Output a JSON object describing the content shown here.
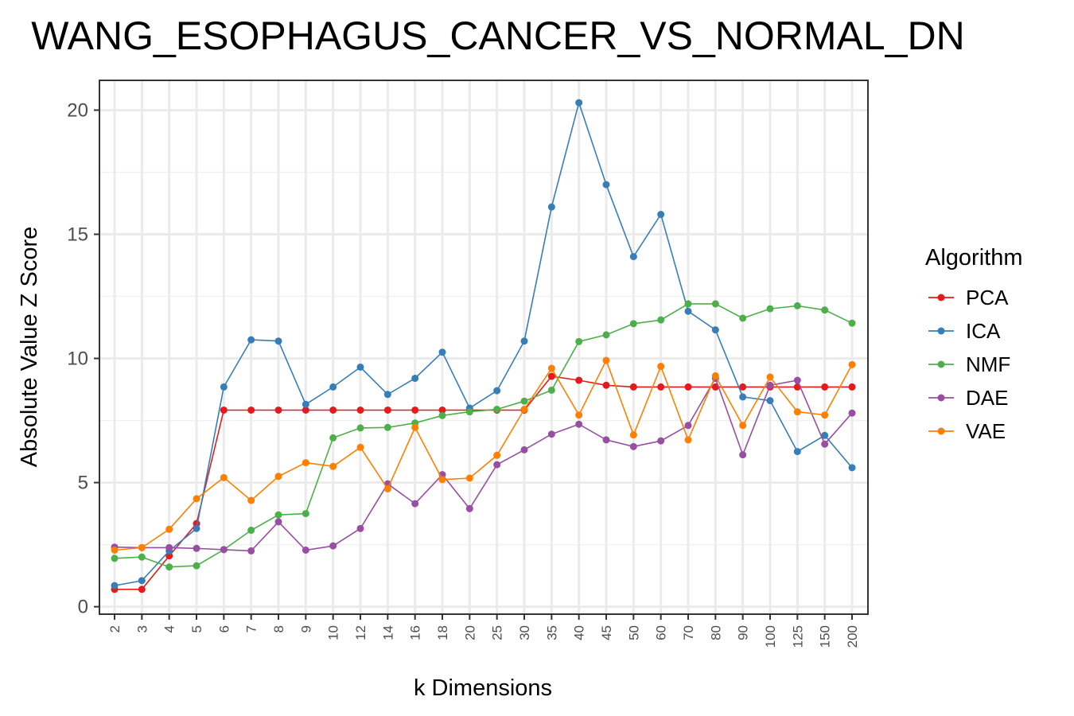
{
  "chart_data": {
    "type": "line",
    "title": "WANG_ESOPHAGUS_CANCER_VS_NORMAL_DN",
    "xlabel": "k Dimensions",
    "ylabel": "Absolute Value Z Score",
    "categories": [
      "2",
      "3",
      "4",
      "5",
      "6",
      "7",
      "8",
      "9",
      "10",
      "12",
      "14",
      "16",
      "18",
      "20",
      "25",
      "30",
      "35",
      "40",
      "45",
      "50",
      "60",
      "70",
      "80",
      "90",
      "100",
      "125",
      "150",
      "200"
    ],
    "ylim": [
      -0.3,
      21.2
    ],
    "yticks": [
      "0",
      "5",
      "10",
      "15",
      "20"
    ],
    "grid": true,
    "legend": {
      "title": "Algorithm",
      "placement": "right"
    },
    "series": [
      {
        "name": "PCA",
        "color": "#e41a1c",
        "values": [
          0.7,
          0.7,
          2.05,
          3.35,
          7.92,
          7.92,
          7.92,
          7.92,
          7.92,
          7.92,
          7.92,
          7.92,
          7.92,
          7.92,
          7.92,
          7.92,
          9.28,
          9.12,
          8.92,
          8.85,
          8.85,
          8.85,
          8.85,
          8.85,
          8.85,
          8.85,
          8.85,
          8.85
        ]
      },
      {
        "name": "ICA",
        "color": "#377eb8",
        "values": [
          0.85,
          1.05,
          2.25,
          3.15,
          8.85,
          10.75,
          10.7,
          8.15,
          8.85,
          9.65,
          8.55,
          9.2,
          10.25,
          8.0,
          8.7,
          10.7,
          16.1,
          20.3,
          17.0,
          14.1,
          15.8,
          11.9,
          11.15,
          8.45,
          8.3,
          6.25,
          6.9,
          5.6
        ]
      },
      {
        "name": "NMF",
        "color": "#4daf4a",
        "values": [
          1.95,
          2.0,
          1.6,
          1.65,
          2.3,
          3.08,
          3.7,
          3.75,
          6.8,
          7.2,
          7.22,
          7.4,
          7.7,
          7.85,
          7.95,
          8.28,
          8.72,
          10.68,
          10.95,
          11.4,
          11.55,
          12.2,
          12.2,
          11.62,
          12.0,
          12.12,
          11.95,
          11.42
        ]
      },
      {
        "name": "DAE",
        "color": "#984ea3",
        "values": [
          2.4,
          2.38,
          2.38,
          2.35,
          2.3,
          2.25,
          3.42,
          2.28,
          2.45,
          3.15,
          4.95,
          4.15,
          5.32,
          3.95,
          5.72,
          6.32,
          6.95,
          7.35,
          6.72,
          6.45,
          6.68,
          7.3,
          9.2,
          6.12,
          8.92,
          9.12,
          6.55,
          7.8
        ]
      },
      {
        "name": "VAE",
        "color": "#ff7f00",
        "values": [
          2.28,
          2.38,
          3.12,
          4.35,
          5.2,
          4.28,
          5.25,
          5.8,
          5.65,
          6.42,
          4.75,
          7.22,
          5.12,
          5.18,
          6.1,
          7.95,
          9.6,
          7.72,
          9.92,
          6.92,
          9.68,
          6.72,
          9.3,
          7.3,
          9.25,
          7.85,
          7.72,
          9.75
        ]
      }
    ]
  }
}
